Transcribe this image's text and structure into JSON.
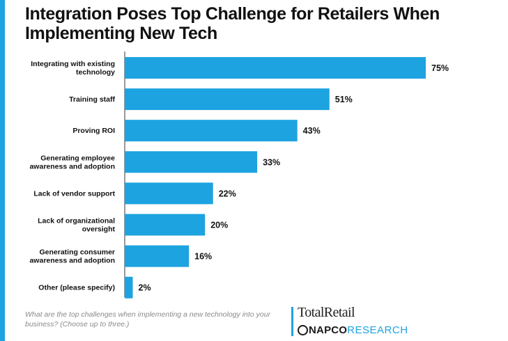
{
  "title": "Integration Poses Top Challenge for Retailers When Implementing New Tech",
  "footnote": "What are the top challenges when implementing a new technology into your business? (Choose up to three.)",
  "brand": {
    "top": "TotalRetail",
    "napco": "NAPCO",
    "research": "RESEARCH"
  },
  "colors": {
    "bar": "#1da3e0",
    "accent": "#1da3e0"
  },
  "chart_data": {
    "type": "bar",
    "orientation": "horizontal",
    "title": "Integration Poses Top Challenge for Retailers When Implementing New Tech",
    "categories": [
      [
        "Integrating with existing",
        "technology"
      ],
      [
        "Training staff"
      ],
      [
        "Proving ROI"
      ],
      [
        "Generating employee",
        "awareness and adoption"
      ],
      [
        "Lack of vendor support"
      ],
      [
        "Lack of organizational",
        "oversight"
      ],
      [
        "Generating consumer",
        "awareness and adoption"
      ],
      [
        "Other (please specify)"
      ]
    ],
    "values": [
      75,
      51,
      43,
      33,
      22,
      20,
      16,
      2
    ],
    "value_labels": [
      "75%",
      "51%",
      "43%",
      "33%",
      "22%",
      "20%",
      "16%",
      "2%"
    ],
    "xlim": [
      0,
      100
    ],
    "grid": false,
    "legend": "none"
  }
}
